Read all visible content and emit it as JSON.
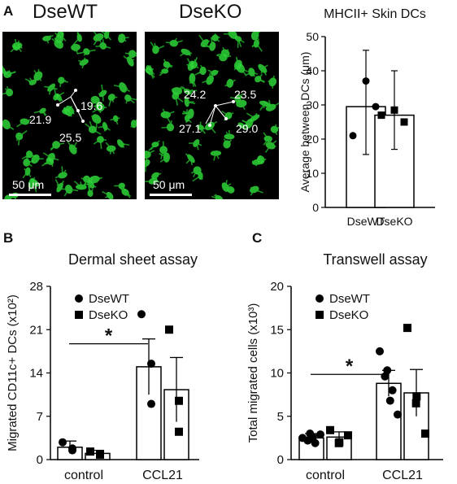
{
  "panel_a": {
    "letter": "A",
    "images": [
      {
        "title": "DseWT",
        "scalebar": "50 μm",
        "distances": [
          "21.9",
          "19.6",
          "25.5"
        ]
      },
      {
        "title": "DseKO",
        "scalebar": "50 μm",
        "distances": [
          "24.2",
          "23.5",
          "27.1",
          "29.0"
        ]
      }
    ]
  },
  "panel_b": {
    "letter": "B"
  },
  "panel_c": {
    "letter": "C"
  },
  "chart_data": [
    {
      "id": "mhcii",
      "type": "bar",
      "title": "MHCII+ Skin DCs",
      "ylabel": "Average between DCs (μm)",
      "xlabel": "",
      "ylim": [
        0,
        50
      ],
      "yticks": [
        0,
        10,
        20,
        30,
        40,
        50
      ],
      "categories": [
        "DseWT",
        "DseKO"
      ],
      "bars": [
        {
          "category": "DseWT",
          "mean": 29.5,
          "err_low": 15.5,
          "err_high": 46,
          "points": [
            {
              "value": 21,
              "marker": "circle"
            },
            {
              "value": 37,
              "marker": "circle"
            },
            {
              "value": 29.5,
              "marker": "circle"
            }
          ]
        },
        {
          "category": "DseKO",
          "mean": 27,
          "err_low": 17,
          "err_high": 40,
          "points": [
            {
              "value": 27,
              "marker": "square"
            },
            {
              "value": 28.5,
              "marker": "square"
            },
            {
              "value": 25,
              "marker": "square"
            }
          ]
        }
      ]
    },
    {
      "id": "dermal",
      "type": "bar",
      "title": "Dermal sheet assay",
      "ylabel": "Migrated CD11c+ DCs (x10²)",
      "xlabel": "",
      "ylim": [
        0,
        28
      ],
      "yticks": [
        0,
        7,
        14,
        21,
        28
      ],
      "categories": [
        "control",
        "CCL21"
      ],
      "legend": [
        {
          "label": "DseWT",
          "marker": "circle"
        },
        {
          "label": "DseKO",
          "marker": "square"
        }
      ],
      "legend_position": "top-left",
      "significance": "*",
      "series": [
        {
          "name": "DseWT",
          "marker": "circle",
          "values": [
            2.0,
            15.0
          ],
          "errors": [
            1.0,
            4.5
          ],
          "points": [
            [
              2.8,
              1.5,
              1.8
            ],
            [
              23.5,
              15.5,
              9.0
            ]
          ]
        },
        {
          "name": "DseKO",
          "marker": "square",
          "values": [
            1.0,
            11.3
          ],
          "errors": [
            0.5,
            5.2
          ],
          "points": [
            [
              1.3,
              0.8,
              0.9
            ],
            [
              21.0,
              9.5,
              4.5
            ]
          ]
        }
      ]
    },
    {
      "id": "transwell",
      "type": "bar",
      "title": "Transwell assay",
      "ylabel": "Total migrated cells (x10³)",
      "xlabel": "",
      "ylim": [
        0,
        20
      ],
      "yticks": [
        0,
        5,
        10,
        15,
        20
      ],
      "categories": [
        "control",
        "CCL21"
      ],
      "legend": [
        {
          "label": "DseWT",
          "marker": "circle"
        },
        {
          "label": "DseKO",
          "marker": "square"
        }
      ],
      "legend_position": "top-left",
      "significance": "*",
      "series": [
        {
          "name": "DseWT",
          "marker": "circle",
          "values": [
            2.5,
            8.8
          ],
          "errors": [
            0.5,
            1.5
          ],
          "points": [
            [
              2.5,
              3.0,
              2.2,
              1.9,
              2.6,
              2.9
            ],
            [
              12.5,
              10.3,
              9.6,
              8.0,
              6.8,
              5.2
            ]
          ]
        },
        {
          "name": "DseKO",
          "marker": "square",
          "values": [
            2.6,
            7.7
          ],
          "errors": [
            0.6,
            2.7
          ],
          "points": [
            [
              3.4,
              2.0,
              1.9,
              2.8
            ],
            [
              15.2,
              7.3,
              6.5,
              3.0
            ]
          ]
        }
      ]
    }
  ]
}
